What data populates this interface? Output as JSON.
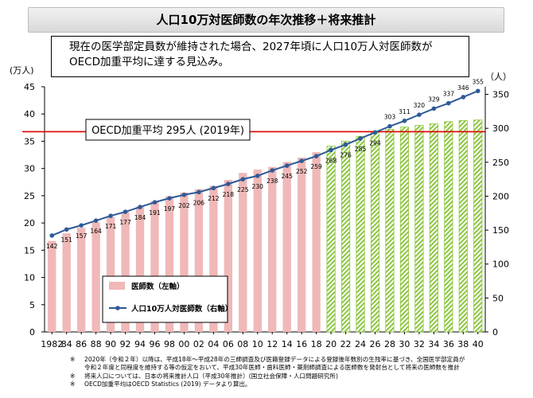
{
  "header": {
    "title": "人口10万対医師数の年次推移＋将来推計"
  },
  "callout": {
    "line1": "現在の医学部定員数が維持された場合、2027年頃に人口10万人対医師数が",
    "line2": "OECD加重平均に達する見込み。"
  },
  "notes": [
    {
      "mark": "※",
      "text": "2020年（令和２年）以降は、平成18年～平成28年の三師調査及び医籍登録データによる登録後年数別の生残率に基づき、全国医学部定員が"
    },
    {
      "mark": "",
      "text": "令和２年度と同程度を維持する等の仮定をおいて、平成30年医師・歯科医師・薬剤師調査による医師数を発射台として将来の医師数を推計"
    },
    {
      "mark": "※",
      "text": "将来人口については、日本の将来推計人口（平成30年推計）(国立社会保障・人口問題研究所)"
    },
    {
      "mark": "※",
      "text": "OECD加重平均はOECD Statistics (2019) データより算出。"
    }
  ],
  "colors": {
    "bar_actual": "#f0b8b8",
    "bar_projection": "#8dc63f",
    "line": "#2e5a97",
    "oecd_line": "#e00000"
  },
  "chart_data": {
    "type": "bar+line",
    "x": [
      "1982",
      "84",
      "86",
      "88",
      "90",
      "92",
      "94",
      "96",
      "98",
      "00",
      "02",
      "04",
      "06",
      "08",
      "10",
      "12",
      "14",
      "16",
      "18",
      "20",
      "22",
      "24",
      "26",
      "28",
      "30",
      "32",
      "34",
      "36",
      "38",
      "40"
    ],
    "bar_series": {
      "name": "医師数（左軸）",
      "values": [
        16.7,
        18.1,
        19.1,
        20.1,
        21.1,
        22.0,
        23.0,
        24.0,
        24.9,
        25.6,
        26.2,
        26.8,
        27.9,
        29.2,
        29.8,
        30.3,
        31.2,
        32.0,
        33.0,
        34.1,
        35.0,
        35.9,
        36.6,
        37.2,
        37.6,
        37.9,
        38.2,
        38.6,
        38.8,
        38.9
      ],
      "projection_start_index": 19
    },
    "line_series": {
      "name": "人口10万人対医師数（右軸）",
      "values": [
        142,
        151,
        157,
        164,
        171,
        177,
        184,
        191,
        197,
        202,
        206,
        212,
        218,
        225,
        230,
        238,
        245,
        252,
        259,
        268,
        276,
        285,
        294,
        303,
        311,
        320,
        329,
        337,
        346,
        355
      ]
    },
    "oecd_reference": {
      "value": 295,
      "label": "OECD加重平均 295人 (2019年)"
    },
    "y_left": {
      "label": "(万人)",
      "ticks": [
        "0",
        "5",
        "10",
        "15",
        "20",
        "25",
        "30",
        "35",
        "40",
        "45"
      ],
      "range": [
        0,
        45
      ]
    },
    "y_right": {
      "label": "（人）",
      "ticks": [
        "0",
        "50",
        "100",
        "150",
        "200",
        "250",
        "300",
        "350"
      ],
      "range": [
        0,
        350
      ]
    },
    "legend_position": "bottom-left",
    "grid": false
  }
}
